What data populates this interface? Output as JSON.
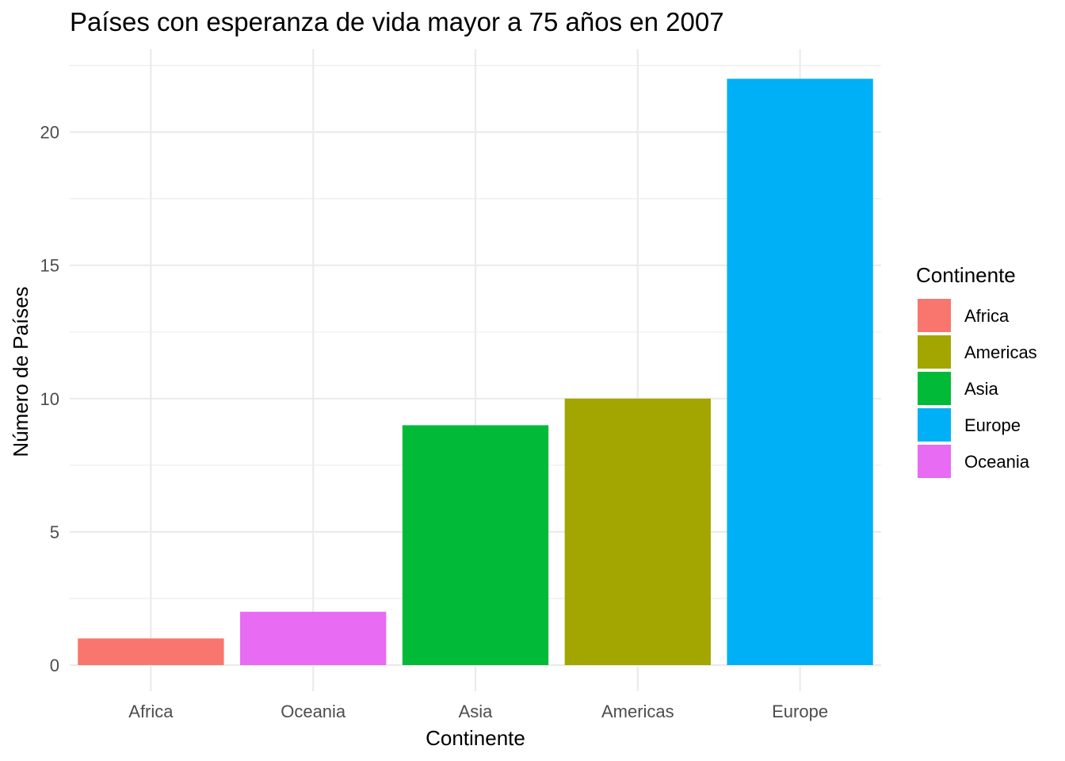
{
  "chart_data": {
    "type": "bar",
    "title": "Países con esperanza de vida mayor a 75 años en 2007",
    "xlabel": "Continente",
    "ylabel": "Número de Países",
    "categories": [
      "Africa",
      "Oceania",
      "Asia",
      "Americas",
      "Europe"
    ],
    "values": [
      1,
      2,
      9,
      10,
      22
    ],
    "bar_colors": [
      "#F8766D",
      "#E76BF3",
      "#00BA38",
      "#A3A500",
      "#00B0F6"
    ],
    "ylim": [
      0,
      23
    ],
    "yticks": [
      0,
      5,
      10,
      15,
      20
    ],
    "grid": true,
    "legend": {
      "title": "Continente",
      "placement": "right",
      "entries": [
        {
          "label": "Africa",
          "color": "#F8766D"
        },
        {
          "label": "Americas",
          "color": "#A3A500"
        },
        {
          "label": "Asia",
          "color": "#00BA38"
        },
        {
          "label": "Europe",
          "color": "#00B0F6"
        },
        {
          "label": "Oceania",
          "color": "#E76BF3"
        }
      ]
    }
  }
}
